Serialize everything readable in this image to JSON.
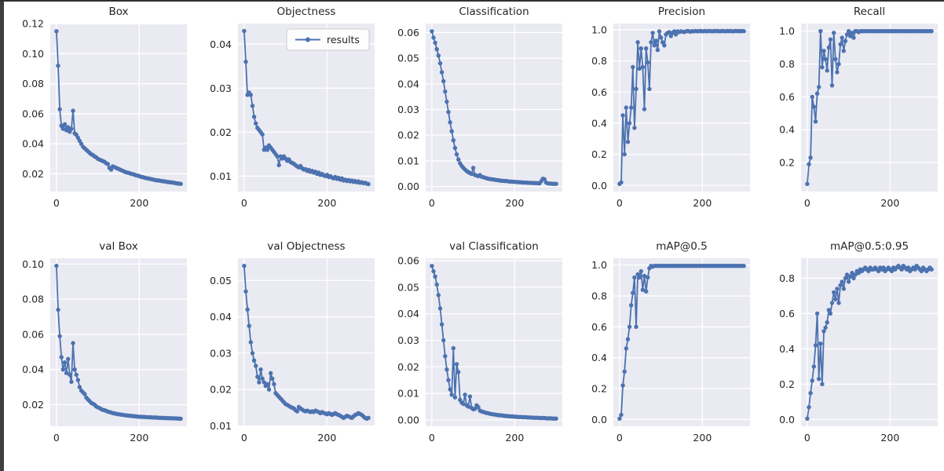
{
  "figure": {
    "description": "training results grid",
    "legend_label": "results",
    "style": {
      "axes_bg": "#eaeaf2",
      "grid_color": "#ffffff",
      "line_color": "#4c72b0",
      "text_color": "#262626"
    }
  },
  "chart_data": [
    {
      "type": "line",
      "title": "Box",
      "legend": false,
      "x_step": 4,
      "xlim": [
        -15,
        315
      ],
      "ylim": [
        0.0082,
        0.1201
      ],
      "xticks": [
        0,
        200
      ],
      "xtick_labels": [
        "0",
        "200"
      ],
      "yticks": [
        0.02,
        0.04,
        0.06,
        0.08,
        0.1,
        0.12
      ],
      "ytick_labels": [
        "0.02",
        "0.04",
        "0.06",
        "0.08",
        "0.10",
        "0.12"
      ],
      "y": [
        0.115,
        0.092,
        0.063,
        0.052,
        0.05,
        0.053,
        0.049,
        0.051,
        0.048,
        0.05,
        0.062,
        0.047,
        0.046,
        0.044,
        0.042,
        0.04,
        0.038,
        0.037,
        0.036,
        0.035,
        0.034,
        0.033,
        0.0325,
        0.0315,
        0.031,
        0.03,
        0.0295,
        0.029,
        0.0285,
        0.028,
        0.027,
        0.0265,
        0.024,
        0.0228,
        0.025,
        0.0245,
        0.024,
        0.0235,
        0.023,
        0.0225,
        0.022,
        0.0215,
        0.021,
        0.0208,
        0.0205,
        0.02,
        0.0198,
        0.0195,
        0.019,
        0.0188,
        0.0185,
        0.018,
        0.0178,
        0.0175,
        0.0172,
        0.017,
        0.0168,
        0.0165,
        0.0163,
        0.016,
        0.0158,
        0.0156,
        0.0155,
        0.0153,
        0.0151,
        0.015,
        0.0148,
        0.0146,
        0.0145,
        0.0143,
        0.0142,
        0.014,
        0.0138,
        0.0136,
        0.0135,
        0.0133
      ]
    },
    {
      "type": "line",
      "title": "Objectness",
      "legend": true,
      "x_step": 4,
      "xlim": [
        -15,
        315
      ],
      "ylim": [
        0.0065,
        0.0447
      ],
      "xticks": [
        0,
        200
      ],
      "xtick_labels": [
        "0",
        "200"
      ],
      "yticks": [
        0.01,
        0.02,
        0.03,
        0.04
      ],
      "ytick_labels": [
        "0.01",
        "0.02",
        "0.03",
        "0.04"
      ],
      "y": [
        0.043,
        0.036,
        0.0285,
        0.029,
        0.0285,
        0.026,
        0.0235,
        0.022,
        0.021,
        0.0205,
        0.02,
        0.0195,
        0.016,
        0.0165,
        0.016,
        0.017,
        0.0165,
        0.016,
        0.0155,
        0.015,
        0.0145,
        0.0125,
        0.0145,
        0.014,
        0.0145,
        0.014,
        0.0135,
        0.0138,
        0.0132,
        0.013,
        0.0128,
        0.0125,
        0.0122,
        0.012,
        0.0123,
        0.0118,
        0.0115,
        0.0116,
        0.0112,
        0.0114,
        0.011,
        0.0112,
        0.0108,
        0.011,
        0.0105,
        0.0108,
        0.0103,
        0.0105,
        0.0102,
        0.01,
        0.0103,
        0.0098,
        0.01,
        0.0097,
        0.0095,
        0.0098,
        0.0094,
        0.0096,
        0.0092,
        0.0095,
        0.009,
        0.0092,
        0.0089,
        0.0091,
        0.0088,
        0.009,
        0.0087,
        0.0089,
        0.0086,
        0.0088,
        0.0085,
        0.0086,
        0.0084,
        0.0085,
        0.0083,
        0.0082
      ]
    },
    {
      "type": "line",
      "title": "Classification",
      "legend": false,
      "x_step": 4,
      "xlim": [
        -15,
        315
      ],
      "ylim": [
        -0.002,
        0.0635
      ],
      "xticks": [
        0,
        200
      ],
      "xtick_labels": [
        "0",
        "200"
      ],
      "yticks": [
        0.0,
        0.01,
        0.02,
        0.03,
        0.04,
        0.05,
        0.06
      ],
      "ytick_labels": [
        "0.00",
        "0.01",
        "0.02",
        "0.03",
        "0.04",
        "0.05",
        "0.06"
      ],
      "y": [
        0.0605,
        0.058,
        0.056,
        0.0535,
        0.051,
        0.048,
        0.0445,
        0.041,
        0.037,
        0.033,
        0.029,
        0.025,
        0.0215,
        0.018,
        0.015,
        0.0125,
        0.0105,
        0.009,
        0.008,
        0.0072,
        0.0066,
        0.006,
        0.0056,
        0.0052,
        0.0049,
        0.0072,
        0.0045,
        0.0042,
        0.004,
        0.0044,
        0.0038,
        0.0036,
        0.0034,
        0.0032,
        0.003,
        0.0029,
        0.0028,
        0.0027,
        0.0026,
        0.0025,
        0.0024,
        0.0023,
        0.0022,
        0.0022,
        0.0021,
        0.0021,
        0.002,
        0.0019,
        0.0019,
        0.0018,
        0.0018,
        0.0017,
        0.0017,
        0.0016,
        0.0016,
        0.0015,
        0.0015,
        0.0015,
        0.0014,
        0.0014,
        0.0014,
        0.0013,
        0.0013,
        0.0013,
        0.0012,
        0.0012,
        0.002,
        0.003,
        0.0028,
        0.0015,
        0.0012,
        0.0011,
        0.0011,
        0.001,
        0.001,
        0.001
      ]
    },
    {
      "type": "line",
      "title": "Precision",
      "legend": false,
      "x_step": 4,
      "xlim": [
        -15,
        315
      ],
      "ylim": [
        -0.039,
        1.04
      ],
      "xticks": [
        0,
        200
      ],
      "xtick_labels": [
        "0",
        "200"
      ],
      "yticks": [
        0.0,
        0.2,
        0.4,
        0.6,
        0.8,
        1.0
      ],
      "ytick_labels": [
        "0.0",
        "0.2",
        "0.4",
        "0.6",
        "0.8",
        "1.0"
      ],
      "y": [
        0.01,
        0.02,
        0.45,
        0.2,
        0.5,
        0.28,
        0.4,
        0.5,
        0.76,
        0.37,
        0.62,
        0.92,
        0.75,
        0.88,
        0.76,
        0.49,
        0.88,
        0.79,
        0.62,
        0.92,
        0.98,
        0.9,
        0.93,
        0.87,
        0.99,
        0.95,
        0.92,
        0.9,
        0.97,
        0.98,
        0.985,
        0.96,
        0.98,
        0.99,
        0.97,
        0.99,
        0.985,
        0.99,
        0.988,
        0.985,
        0.99,
        0.992,
        0.99,
        0.988,
        0.991,
        0.99,
        0.992,
        0.99,
        0.991,
        0.992,
        0.99,
        0.991,
        0.992,
        0.99,
        0.992,
        0.991,
        0.99,
        0.992,
        0.991,
        0.992,
        0.99,
        0.991,
        0.992,
        0.991,
        0.99,
        0.992,
        0.991,
        0.992,
        0.99,
        0.991,
        0.992,
        0.991,
        0.992,
        0.99,
        0.992,
        0.991
      ]
    },
    {
      "type": "line",
      "title": "Recall",
      "legend": false,
      "x_step": 4,
      "xlim": [
        -15,
        315
      ],
      "ylim": [
        0.0235,
        1.0465
      ],
      "xticks": [
        0,
        200
      ],
      "xtick_labels": [
        "0",
        "200"
      ],
      "yticks": [
        0.2,
        0.4,
        0.6,
        0.8,
        1.0
      ],
      "ytick_labels": [
        "0.2",
        "0.4",
        "0.6",
        "0.8",
        "1.0"
      ],
      "y": [
        0.07,
        0.19,
        0.23,
        0.6,
        0.54,
        0.45,
        0.62,
        0.66,
        1.0,
        0.78,
        0.88,
        0.83,
        0.76,
        0.9,
        0.95,
        0.67,
        0.99,
        0.83,
        0.75,
        0.8,
        0.92,
        0.96,
        0.88,
        0.94,
        0.98,
        1.0,
        0.97,
        0.99,
        0.96,
        1.0,
        1.0,
        0.995,
        1.0,
        1.0,
        1.0,
        1.0,
        1.0,
        1.0,
        1.0,
        1.0,
        1.0,
        1.0,
        1.0,
        1.0,
        1.0,
        1.0,
        1.0,
        1.0,
        1.0,
        1.0,
        1.0,
        1.0,
        1.0,
        1.0,
        1.0,
        1.0,
        1.0,
        1.0,
        1.0,
        1.0,
        1.0,
        1.0,
        1.0,
        1.0,
        1.0,
        1.0,
        1.0,
        1.0,
        1.0,
        1.0,
        1.0,
        1.0,
        1.0,
        1.0,
        1.0,
        1.0
      ]
    },
    {
      "type": "line",
      "title": "val Box",
      "legend": false,
      "x_step": 4,
      "xlim": [
        -15,
        315
      ],
      "ylim": [
        0.0077,
        0.1033
      ],
      "xticks": [
        0,
        200
      ],
      "xtick_labels": [
        "0",
        "200"
      ],
      "yticks": [
        0.02,
        0.04,
        0.06,
        0.08,
        0.1
      ],
      "ytick_labels": [
        "0.02",
        "0.04",
        "0.06",
        "0.08",
        "0.10"
      ],
      "y": [
        0.099,
        0.074,
        0.059,
        0.047,
        0.04,
        0.044,
        0.038,
        0.046,
        0.037,
        0.033,
        0.055,
        0.04,
        0.037,
        0.034,
        0.03,
        0.028,
        0.027,
        0.026,
        0.024,
        0.023,
        0.022,
        0.021,
        0.0205,
        0.02,
        0.019,
        0.0185,
        0.018,
        0.0175,
        0.017,
        0.0168,
        0.0165,
        0.016,
        0.0158,
        0.0155,
        0.0152,
        0.015,
        0.0148,
        0.0146,
        0.0145,
        0.0143,
        0.0142,
        0.014,
        0.0139,
        0.0138,
        0.0137,
        0.0136,
        0.0135,
        0.0134,
        0.0133,
        0.0132,
        0.0131,
        0.0131,
        0.013,
        0.013,
        0.0129,
        0.0129,
        0.0128,
        0.0128,
        0.0127,
        0.0127,
        0.0126,
        0.0126,
        0.0125,
        0.0125,
        0.0125,
        0.0124,
        0.0124,
        0.0123,
        0.0123,
        0.0123,
        0.0122,
        0.0122,
        0.0122,
        0.0121,
        0.0121,
        0.012
      ]
    },
    {
      "type": "line",
      "title": "val Objectness",
      "legend": false,
      "x_step": 4,
      "xlim": [
        -15,
        315
      ],
      "ylim": [
        0.0099,
        0.0561
      ],
      "xticks": [
        0,
        200
      ],
      "xtick_labels": [
        "0",
        "200"
      ],
      "yticks": [
        0.01,
        0.02,
        0.03,
        0.04,
        0.05
      ],
      "ytick_labels": [
        "0.01",
        "0.02",
        "0.03",
        "0.04",
        "0.05"
      ],
      "y": [
        0.054,
        0.047,
        0.042,
        0.0375,
        0.033,
        0.03,
        0.028,
        0.0265,
        0.0235,
        0.022,
        0.0255,
        0.023,
        0.022,
        0.021,
        0.0215,
        0.02,
        0.0245,
        0.023,
        0.0215,
        0.019,
        0.0185,
        0.018,
        0.0175,
        0.017,
        0.0165,
        0.016,
        0.0158,
        0.0155,
        0.0152,
        0.015,
        0.0148,
        0.0143,
        0.014,
        0.0152,
        0.0148,
        0.0145,
        0.0142,
        0.014,
        0.0142,
        0.014,
        0.0138,
        0.014,
        0.0138,
        0.0142,
        0.014,
        0.0138,
        0.0135,
        0.0138,
        0.0136,
        0.0134,
        0.0132,
        0.0135,
        0.0133,
        0.013,
        0.0133,
        0.0135,
        0.0132,
        0.013,
        0.0128,
        0.0125,
        0.0122,
        0.0125,
        0.0128,
        0.0126,
        0.0124,
        0.0122,
        0.0126,
        0.013,
        0.0132,
        0.0135,
        0.0133,
        0.013,
        0.0126,
        0.0122,
        0.012,
        0.0122
      ]
    },
    {
      "type": "line",
      "title": "val Classification",
      "legend": false,
      "x_step": 4,
      "xlim": [
        -15,
        315
      ],
      "ylim": [
        -0.0024,
        0.0609
      ],
      "xticks": [
        0,
        200
      ],
      "xtick_labels": [
        "0",
        "200"
      ],
      "yticks": [
        0.0,
        0.01,
        0.02,
        0.03,
        0.04,
        0.05,
        0.06
      ],
      "ytick_labels": [
        "0.00",
        "0.01",
        "0.02",
        "0.03",
        "0.04",
        "0.05",
        "0.06"
      ],
      "y": [
        0.058,
        0.056,
        0.054,
        0.051,
        0.047,
        0.042,
        0.036,
        0.03,
        0.024,
        0.019,
        0.015,
        0.0115,
        0.0095,
        0.027,
        0.0085,
        0.021,
        0.018,
        0.0075,
        0.0065,
        0.006,
        0.0095,
        0.0055,
        0.005,
        0.0088,
        0.0045,
        0.004,
        0.0042,
        0.0055,
        0.0048,
        0.0035,
        0.0032,
        0.003,
        0.0028,
        0.0026,
        0.0025,
        0.0023,
        0.0022,
        0.0021,
        0.002,
        0.0019,
        0.0018,
        0.0017,
        0.0017,
        0.0016,
        0.0015,
        0.0015,
        0.0014,
        0.0014,
        0.0013,
        0.0013,
        0.0012,
        0.0012,
        0.0011,
        0.0011,
        0.0011,
        0.001,
        0.001,
        0.001,
        0.0009,
        0.0009,
        0.0009,
        0.0008,
        0.0008,
        0.0008,
        0.0008,
        0.0007,
        0.0007,
        0.0007,
        0.0007,
        0.0006,
        0.0006,
        0.0006,
        0.0006,
        0.0005,
        0.0005,
        0.0005
      ]
    },
    {
      "type": "line",
      "title": "mAP@0.5",
      "legend": false,
      "x_step": 4,
      "xlim": [
        -15,
        315
      ],
      "ylim": [
        -0.0445,
        1.0445
      ],
      "xticks": [
        0,
        200
      ],
      "xtick_labels": [
        "0",
        "200"
      ],
      "yticks": [
        0.0,
        0.2,
        0.4,
        0.6,
        0.8,
        1.0
      ],
      "ytick_labels": [
        "0.0",
        "0.2",
        "0.4",
        "0.6",
        "0.8",
        "1.0"
      ],
      "y": [
        0.005,
        0.03,
        0.22,
        0.31,
        0.46,
        0.52,
        0.6,
        0.74,
        0.82,
        0.92,
        0.6,
        0.94,
        0.92,
        0.96,
        0.84,
        0.93,
        0.83,
        0.92,
        0.98,
        0.995,
        0.99,
        0.995,
        0.995,
        0.995,
        0.995,
        0.995,
        0.995,
        0.995,
        0.995,
        0.995,
        0.995,
        0.995,
        0.995,
        0.995,
        0.995,
        0.995,
        0.995,
        0.995,
        0.995,
        0.995,
        0.995,
        0.995,
        0.995,
        0.995,
        0.995,
        0.995,
        0.995,
        0.995,
        0.995,
        0.995,
        0.995,
        0.995,
        0.995,
        0.995,
        0.995,
        0.995,
        0.995,
        0.995,
        0.995,
        0.995,
        0.995,
        0.995,
        0.995,
        0.995,
        0.995,
        0.995,
        0.995,
        0.995,
        0.995,
        0.995,
        0.995,
        0.995,
        0.995,
        0.995,
        0.995,
        0.995
      ]
    },
    {
      "type": "line",
      "title": "mAP@0.5:0.95",
      "legend": false,
      "x_step": 4,
      "xlim": [
        -15,
        315
      ],
      "ylim": [
        -0.038,
        0.913
      ],
      "xticks": [
        0,
        200
      ],
      "xtick_labels": [
        "0",
        "200"
      ],
      "yticks": [
        0.0,
        0.2,
        0.4,
        0.6,
        0.8
      ],
      "ytick_labels": [
        "0.0",
        "0.2",
        "0.4",
        "0.6",
        "0.8"
      ],
      "y": [
        0.005,
        0.07,
        0.15,
        0.22,
        0.3,
        0.42,
        0.6,
        0.23,
        0.43,
        0.2,
        0.5,
        0.52,
        0.55,
        0.62,
        0.6,
        0.66,
        0.72,
        0.68,
        0.74,
        0.66,
        0.76,
        0.78,
        0.74,
        0.8,
        0.82,
        0.78,
        0.81,
        0.83,
        0.8,
        0.82,
        0.84,
        0.83,
        0.85,
        0.84,
        0.85,
        0.86,
        0.85,
        0.84,
        0.86,
        0.85,
        0.85,
        0.86,
        0.85,
        0.84,
        0.86,
        0.85,
        0.86,
        0.84,
        0.85,
        0.86,
        0.85,
        0.84,
        0.86,
        0.85,
        0.86,
        0.87,
        0.86,
        0.85,
        0.87,
        0.86,
        0.85,
        0.86,
        0.84,
        0.85,
        0.86,
        0.85,
        0.87,
        0.86,
        0.85,
        0.84,
        0.86,
        0.85,
        0.84,
        0.85,
        0.86,
        0.85
      ]
    }
  ]
}
